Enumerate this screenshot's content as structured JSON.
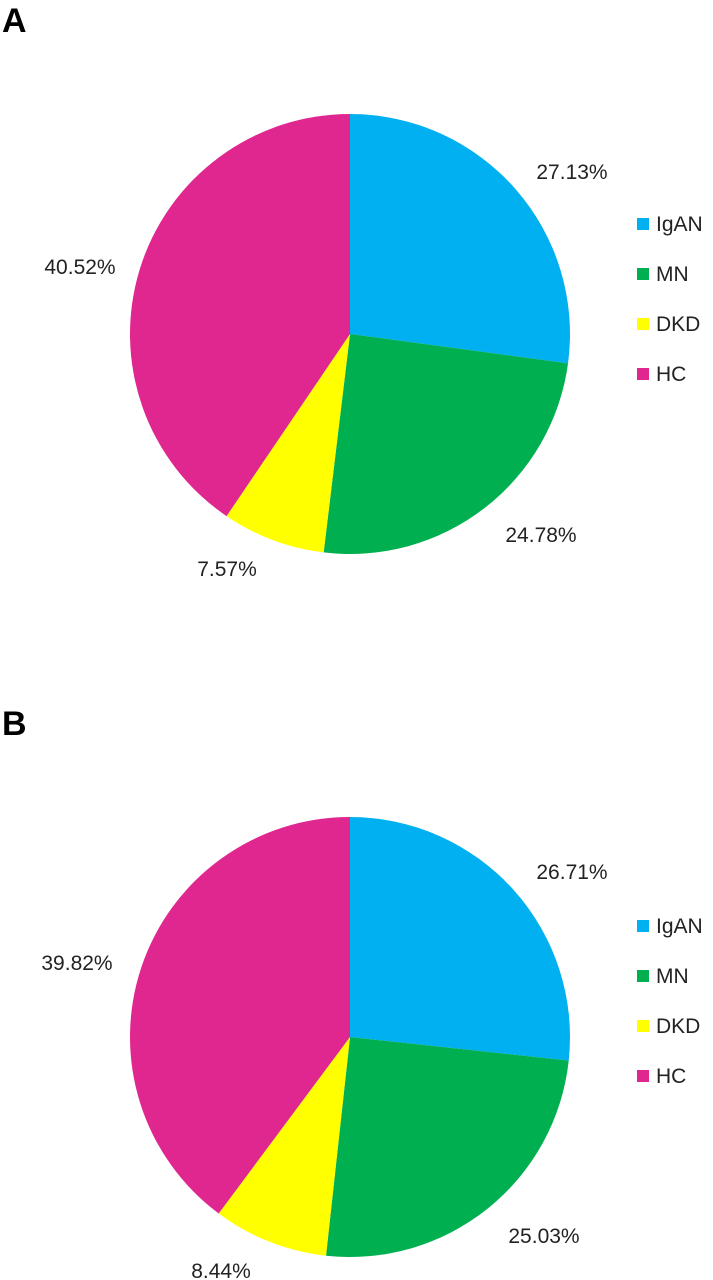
{
  "colors": {
    "IgAN": "#00b0f0",
    "MN": "#00b050",
    "DKD": "#ffff00",
    "HC": "#e0268f"
  },
  "chart_data": [
    {
      "type": "pie",
      "panel": "A",
      "categories": [
        "IgAN",
        "MN",
        "DKD",
        "HC"
      ],
      "values": [
        27.13,
        24.78,
        7.57,
        40.52
      ],
      "labels": [
        "27.13%",
        "24.78%",
        "7.57%",
        "40.52%"
      ],
      "legend": [
        "IgAN",
        "MN",
        "DKD",
        "HC"
      ],
      "legend_position": "right",
      "start_angle": "12 o'clock",
      "direction": "clockwise"
    },
    {
      "type": "pie",
      "panel": "B",
      "categories": [
        "IgAN",
        "MN",
        "DKD",
        "HC"
      ],
      "values": [
        26.71,
        25.03,
        8.44,
        39.82
      ],
      "labels": [
        "26.71%",
        "25.03%",
        "8.44%",
        "39.82%"
      ],
      "legend": [
        "IgAN",
        "MN",
        "DKD",
        "HC"
      ],
      "legend_position": "right",
      "start_angle": "12 o'clock",
      "direction": "clockwise"
    }
  ]
}
